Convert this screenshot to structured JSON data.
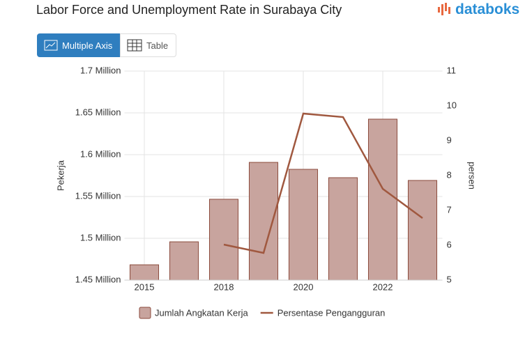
{
  "logo": "databoks",
  "buttons": [
    "Multiple Axis",
    "Table"
  ],
  "chart_data": {
    "type": "bar-line",
    "title": "Labor Force and Unemployment Rate in Surabaya City",
    "categories": [
      "2015",
      null,
      "2018",
      null,
      "2020",
      null,
      "2022",
      null
    ],
    "series": [
      {
        "name": "Jumlah Angkatan Kerja",
        "type": "bar",
        "color": "#c8a49e",
        "values": [
          1468300,
          1495800,
          1546700,
          1590800,
          1582500,
          1572500,
          1642500,
          1569200
        ]
      },
      {
        "name": "Persentase Pengangguran",
        "type": "line",
        "axis": "y2",
        "color": "#a0583f",
        "values": [
          null,
          null,
          6.02,
          5.78,
          9.78,
          9.68,
          7.62,
          6.78
        ]
      }
    ],
    "ylabel": "Pekerja",
    "y2label": "persen",
    "ylim": [
      1450000,
      1700000
    ],
    "yticks": [
      {
        "value": 1450000,
        "label": "1.45 Million"
      },
      {
        "value": 1500000,
        "label": "1.5 Million"
      },
      {
        "value": 1550000,
        "label": "1.55 Million"
      },
      {
        "value": 1600000,
        "label": "1.6 Million"
      },
      {
        "value": 1650000,
        "label": "1.65 Million"
      },
      {
        "value": 1700000,
        "label": "1.7 Million"
      }
    ],
    "y2lim": [
      5,
      11
    ],
    "y2ticks": [
      5,
      6,
      7,
      8,
      9,
      10,
      11
    ],
    "grid": true
  }
}
